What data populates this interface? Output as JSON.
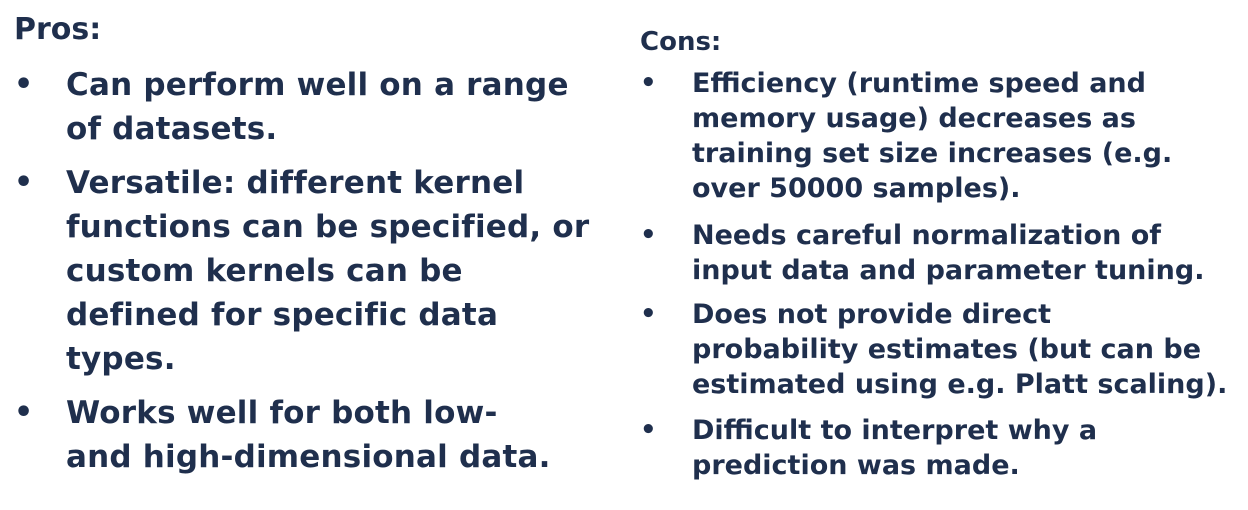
{
  "pros": {
    "heading": "Pros:",
    "items": [
      {
        "lines": [
          "Can perform well on a range",
          "of datasets."
        ]
      },
      {
        "lines": [
          "Versatile: different kernel",
          "functions can be specified, or",
          "custom kernels can be",
          "defined for specific data",
          "types."
        ]
      },
      {
        "lines": [
          "Works well for both low-",
          "and high-dimensional data."
        ]
      }
    ]
  },
  "cons": {
    "heading": "Cons:",
    "items": [
      {
        "lines": [
          "Efficiency (runtime speed and",
          "memory usage) decreases as",
          "training set size increases (e.g.",
          "over 50000 samples)."
        ]
      },
      {
        "lines": [
          "Needs careful normalization of",
          "input data and parameter tuning."
        ]
      },
      {
        "lines": [
          "Does not provide direct",
          "probability estimates (but can be",
          "estimated using e.g. Platt scaling)."
        ]
      },
      {
        "lines": [
          "Difficult to interpret why a",
          "prediction was made."
        ]
      }
    ]
  },
  "bullet_glyph": "•"
}
